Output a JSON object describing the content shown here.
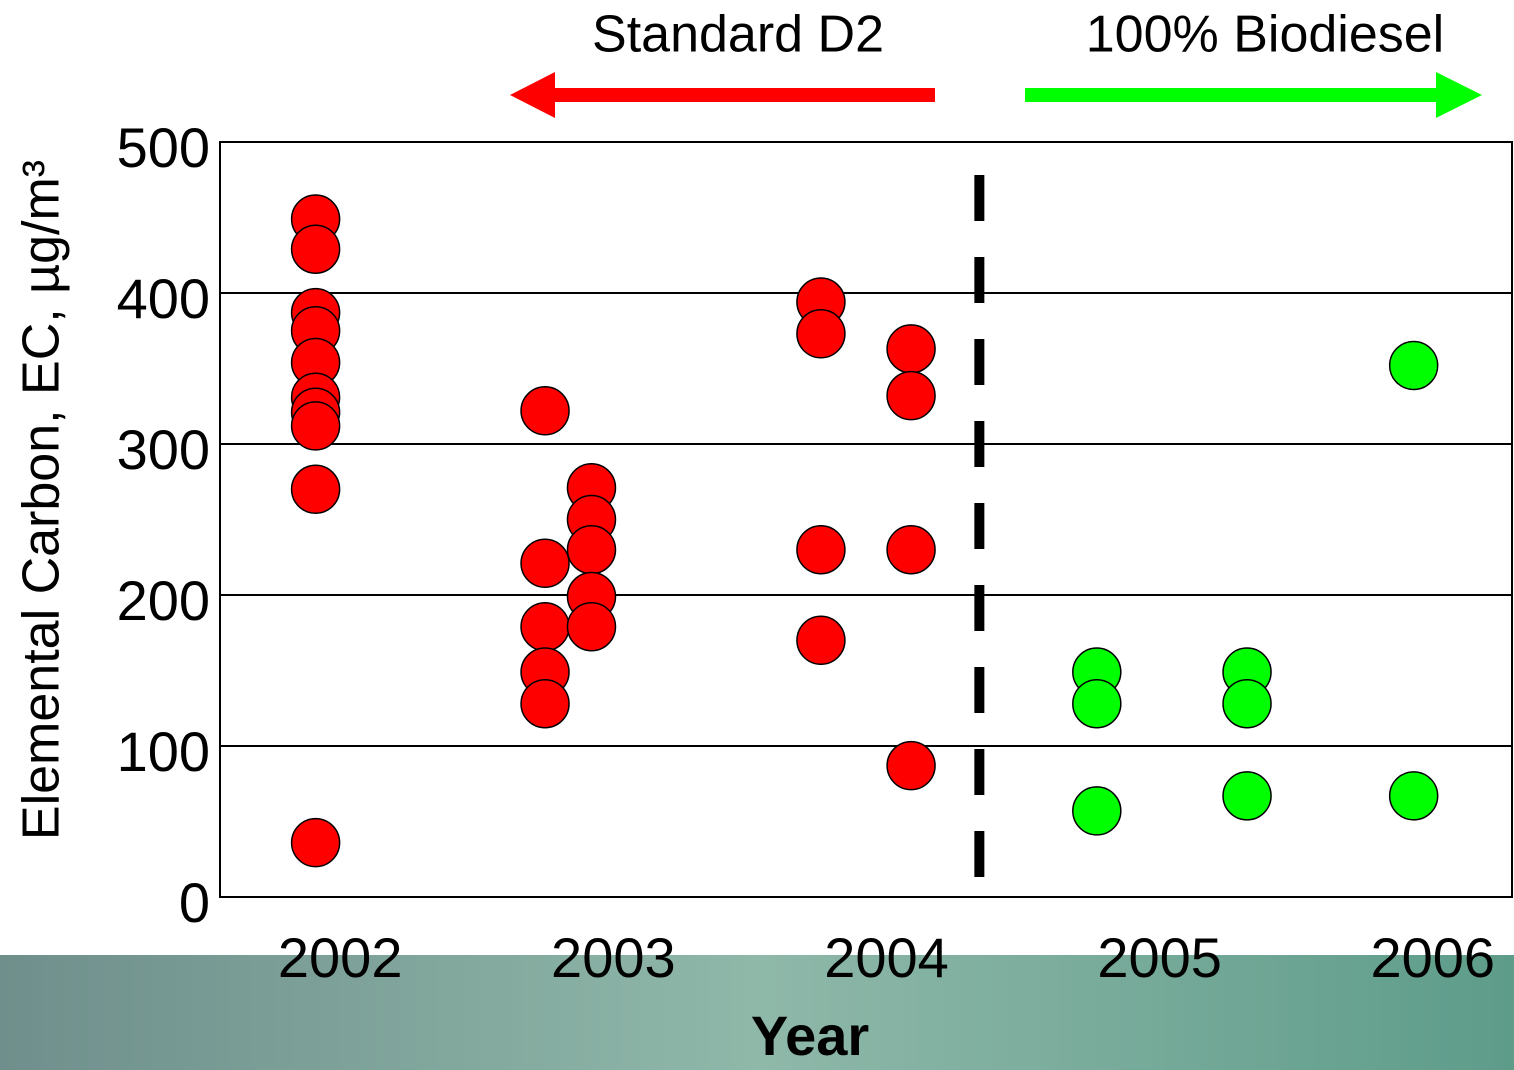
{
  "chart_data": {
    "type": "scatter",
    "y_label": "Elemental Carbon, EC, µg/m³",
    "x_label": "Year",
    "xlim": [
      2001.56,
      2006.29
    ],
    "xticks": [
      2002,
      2003,
      2004,
      2005,
      2006
    ],
    "ylim": [
      0,
      500
    ],
    "yticks": [
      0,
      100,
      200,
      300,
      400,
      500
    ],
    "grid": true,
    "divider_x": 2004.34,
    "series": [
      {
        "name": "Standard D2",
        "color": "#ff0000",
        "x": [
          2001.91,
          2001.91,
          2001.91,
          2001.91,
          2001.91,
          2001.91,
          2001.91,
          2001.91,
          2001.91,
          2001.91,
          2002.75,
          2002.75,
          2002.75,
          2002.75,
          2002.75,
          2002.92,
          2002.92,
          2002.92,
          2002.92,
          2002.92,
          2003.76,
          2003.76,
          2003.76,
          2003.76,
          2004.09,
          2004.09,
          2004.09,
          2004.09
        ],
        "values": [
          449,
          429,
          387,
          375,
          354,
          331,
          321,
          312,
          270,
          36,
          322,
          221,
          179,
          149,
          128,
          271,
          250,
          230,
          199,
          179,
          394,
          373,
          230,
          170,
          363,
          332,
          230,
          87
        ]
      },
      {
        "name": "100% Biodiesel",
        "color": "#00ff00",
        "x": [
          2004.77,
          2004.77,
          2004.77,
          2005.32,
          2005.32,
          2005.32,
          2005.93,
          2005.93
        ],
        "values": [
          149,
          128,
          57,
          149,
          128,
          67,
          352,
          67
        ]
      }
    ]
  }
}
